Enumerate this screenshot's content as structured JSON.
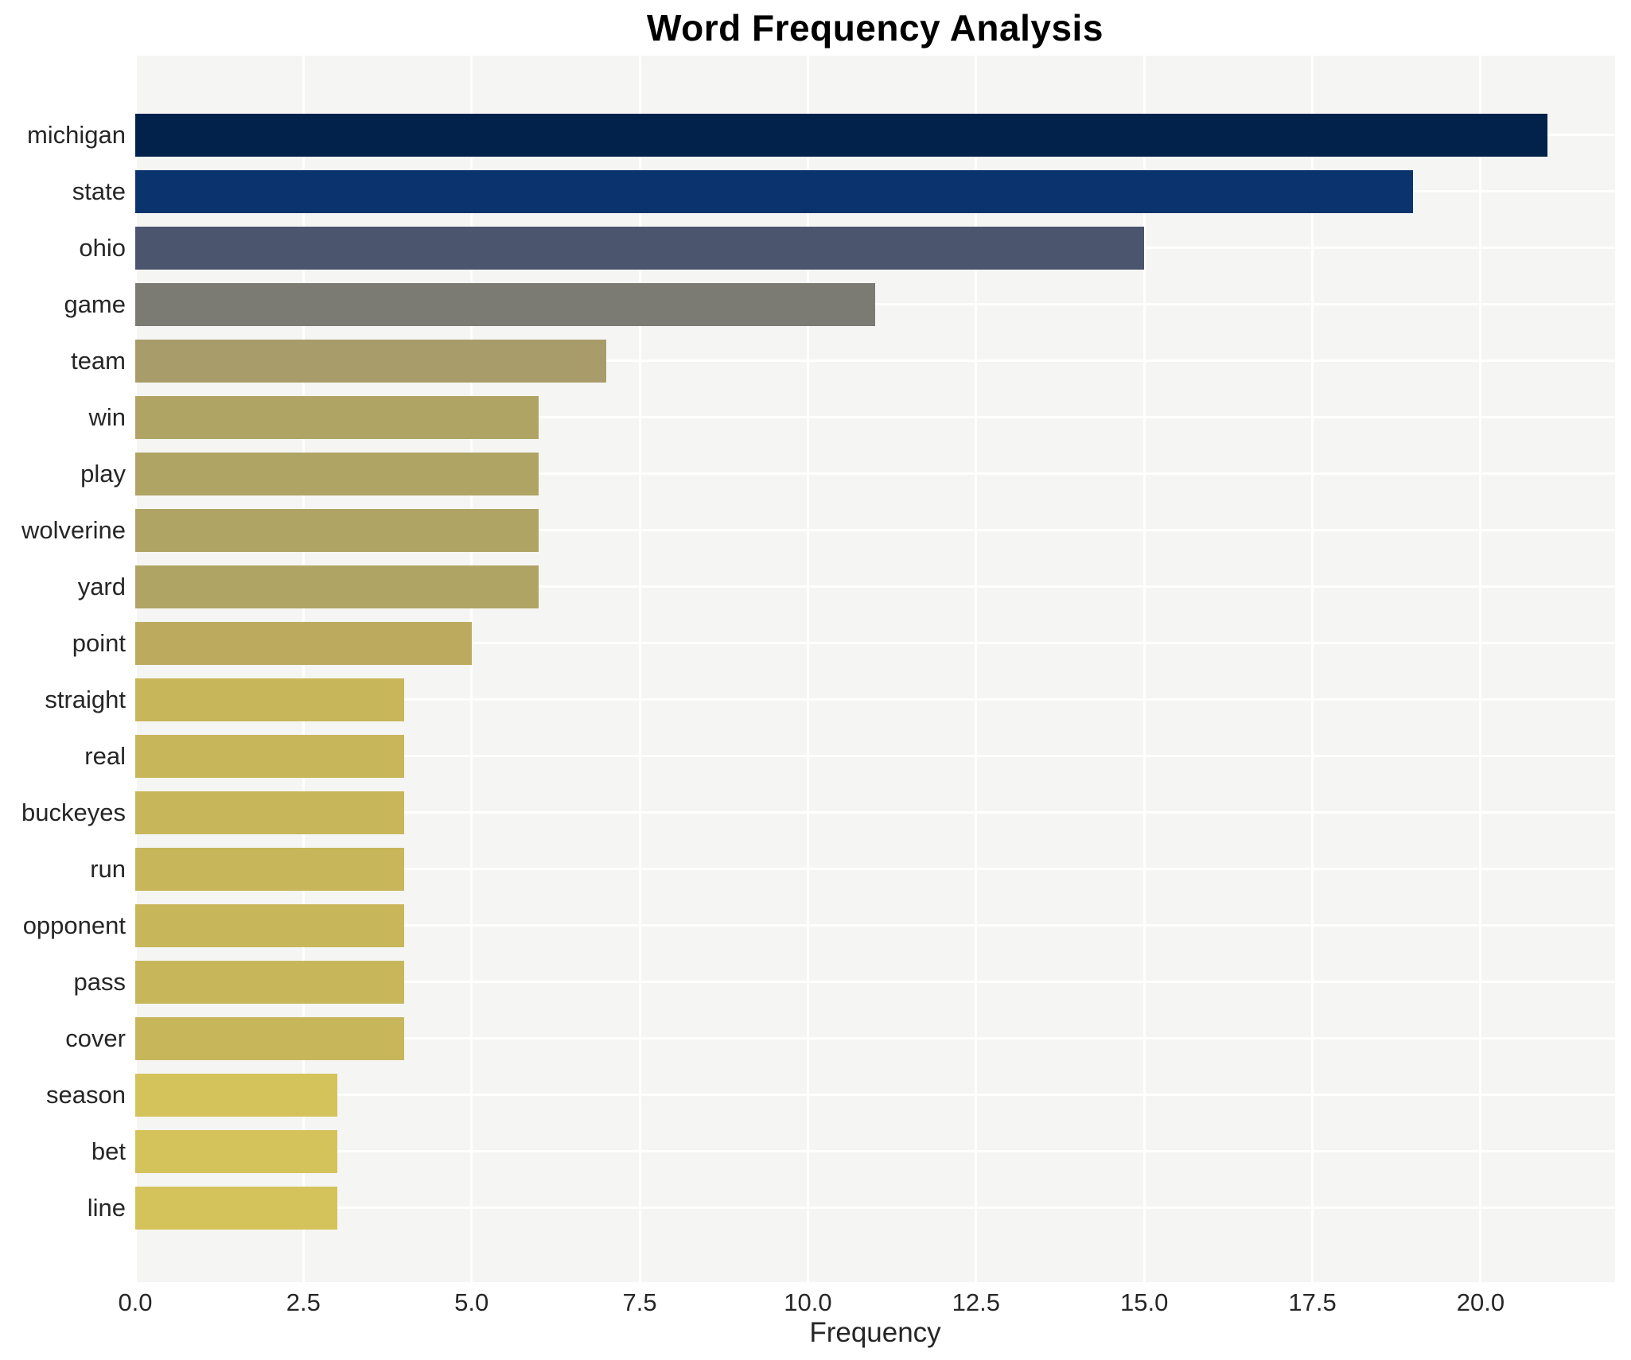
{
  "title": "Word Frequency Analysis",
  "x_axis_label": "Frequency",
  "colors": {
    "page_background": "#ffffff",
    "plot_background": "#f5f5f3",
    "gridline": "#ffffff",
    "title_text": "#000000",
    "tick_text": "#262626"
  },
  "chart_data": {
    "type": "bar",
    "orientation": "horizontal",
    "title": "Word Frequency Analysis",
    "xlabel": "Frequency",
    "ylabel": "",
    "grid": true,
    "legend": false,
    "xlim": [
      0,
      22
    ],
    "xticks": [
      "0.0",
      "2.5",
      "5.0",
      "7.5",
      "10.0",
      "12.5",
      "15.0",
      "17.5",
      "20.0"
    ],
    "xtick_values": [
      0,
      2.5,
      5,
      7.5,
      10,
      12.5,
      15,
      17.5,
      20
    ],
    "categories": [
      "michigan",
      "state",
      "ohio",
      "game",
      "team",
      "win",
      "play",
      "wolverine",
      "yard",
      "point",
      "straight",
      "real",
      "buckeyes",
      "run",
      "opponent",
      "pass",
      "cover",
      "season",
      "bet",
      "line"
    ],
    "values": [
      21,
      19,
      15,
      11,
      7,
      6,
      6,
      6,
      6,
      5,
      4,
      4,
      4,
      4,
      4,
      4,
      4,
      3,
      3,
      3
    ],
    "bar_colors": [
      "#02214b",
      "#0b346f",
      "#4c556e",
      "#7b7a73",
      "#a89c6b",
      "#b0a465",
      "#b0a465",
      "#b0a465",
      "#b0a465",
      "#bcab5e",
      "#c8b65a",
      "#c8b65a",
      "#c8b65a",
      "#c8b65a",
      "#c8b65a",
      "#c8b65a",
      "#c8b65a",
      "#d4c35b",
      "#d4c35b",
      "#d4c35b"
    ],
    "colormap_note": "cividis-style gradient, dark navy (high freq) to gold (low freq)"
  }
}
